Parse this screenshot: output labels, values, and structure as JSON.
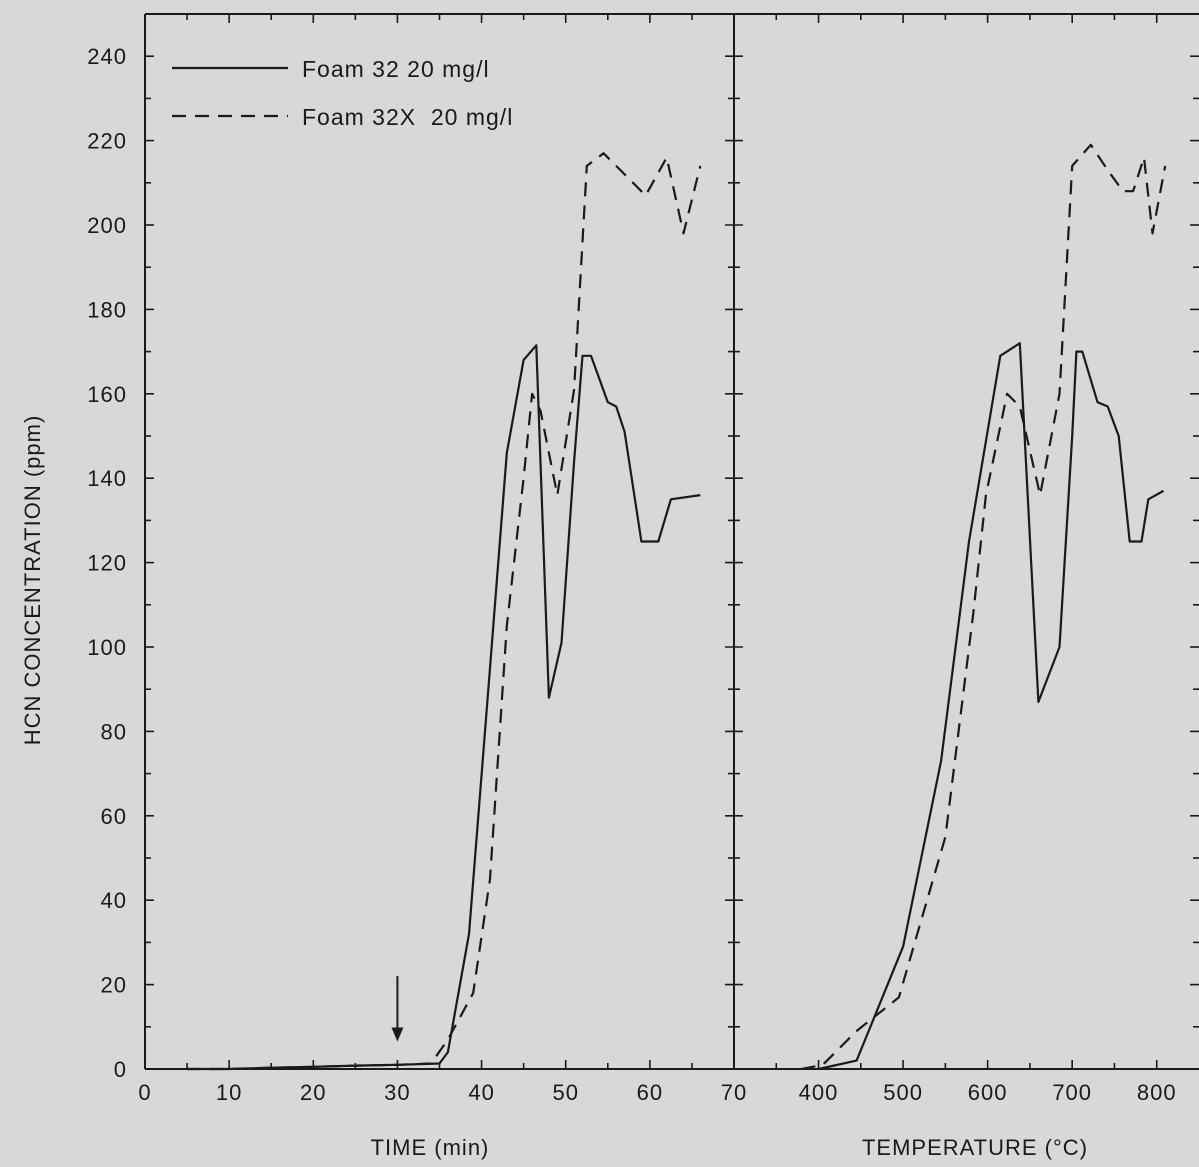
{
  "colors": {
    "background": "#d8d8d6",
    "ink": "#1a1a1a"
  },
  "y_axis": {
    "title": "HCN CONCENTRATION (ppm)",
    "ylim": [
      0,
      250
    ],
    "ticks": [
      "0",
      "20",
      "40",
      "60",
      "80",
      "100",
      "120",
      "140",
      "160",
      "180",
      "200",
      "220",
      "240"
    ]
  },
  "legend": {
    "placement": "top-left",
    "entries": [
      {
        "label": "Foam 32 20 mg/l",
        "style": "solid"
      },
      {
        "label": "Foam 32X  20 mg/l",
        "style": "dashed"
      }
    ]
  },
  "chart_data": [
    {
      "type": "line",
      "xlabel": "TIME (min)",
      "ylabel": "HCN CONCENTRATION (ppm)",
      "xlim": [
        0,
        70
      ],
      "ylim": [
        0,
        250
      ],
      "x_ticks": [
        "0",
        "10",
        "20",
        "30",
        "40",
        "50",
        "60",
        "70"
      ],
      "grid": false,
      "annotations": [
        {
          "type": "arrow-down",
          "x": 30,
          "y_from": 22,
          "y_to": 7
        }
      ],
      "series": [
        {
          "name": "Foam 32 20 mg/l",
          "style": "solid",
          "points": [
            [
              5,
              0
            ],
            [
              10,
              0
            ],
            [
              15,
              0.3
            ],
            [
              20,
              0.5
            ],
            [
              25,
              0.8
            ],
            [
              30,
              1.0
            ],
            [
              35,
              1.3
            ],
            [
              36,
              4
            ],
            [
              38.5,
              32
            ],
            [
              41,
              95
            ],
            [
              43,
              146
            ],
            [
              45,
              168
            ],
            [
              46.5,
              171.5
            ],
            [
              48,
              88
            ],
            [
              49.5,
              101
            ],
            [
              51,
              144
            ],
            [
              52,
              169
            ],
            [
              53,
              169
            ],
            [
              55,
              158
            ],
            [
              56,
              157
            ],
            [
              57,
              151
            ],
            [
              59,
              125
            ],
            [
              61,
              125
            ],
            [
              62.5,
              135
            ],
            [
              66,
              136
            ]
          ]
        },
        {
          "name": "Foam 32X  20 mg/l",
          "style": "dashed",
          "points": [
            [
              5,
              0
            ],
            [
              10,
              0
            ],
            [
              15,
              0.3
            ],
            [
              20,
              0.5
            ],
            [
              25,
              0.8
            ],
            [
              30,
              1.0
            ],
            [
              34,
              1.3
            ],
            [
              36,
              7
            ],
            [
              39,
              18
            ],
            [
              41,
              45
            ],
            [
              43,
              105
            ],
            [
              45,
              140
            ],
            [
              46,
              160
            ],
            [
              47,
              156
            ],
            [
              49,
              136
            ],
            [
              51,
              161
            ],
            [
              52.5,
              214
            ],
            [
              54.5,
              217
            ],
            [
              56,
              214
            ],
            [
              58,
              210
            ],
            [
              59.5,
              207
            ],
            [
              62,
              216
            ],
            [
              64,
              198
            ],
            [
              66,
              214
            ]
          ]
        }
      ]
    },
    {
      "type": "line",
      "xlabel": "TEMPERATURE (°C)",
      "ylabel": "",
      "xlim": [
        300,
        850
      ],
      "ylim": [
        0,
        250
      ],
      "x_ticks": [
        "400",
        "500",
        "600",
        "700",
        "800"
      ],
      "grid": false,
      "series": [
        {
          "name": "Foam 32 20 mg/l",
          "style": "solid",
          "points": [
            [
              400,
              0
            ],
            [
              445,
              2
            ],
            [
              500,
              29
            ],
            [
              545,
              73
            ],
            [
              578,
              125
            ],
            [
              615,
              169
            ],
            [
              638,
              172
            ],
            [
              660,
              87
            ],
            [
              685,
              100
            ],
            [
              700,
              150
            ],
            [
              705,
              170
            ],
            [
              712,
              170
            ],
            [
              730,
              158
            ],
            [
              742,
              157
            ],
            [
              755,
              150
            ],
            [
              768,
              125
            ],
            [
              782,
              125
            ],
            [
              790,
              135
            ],
            [
              808,
              137
            ]
          ]
        },
        {
          "name": "Foam 32X  20 mg/l",
          "style": "dashed",
          "points": [
            [
              380,
              0
            ],
            [
              405,
              1
            ],
            [
              445,
              9
            ],
            [
              495,
              17
            ],
            [
              550,
              55
            ],
            [
              583,
              108
            ],
            [
              598,
              136
            ],
            [
              623,
              160
            ],
            [
              638,
              157
            ],
            [
              662,
              136
            ],
            [
              685,
              160
            ],
            [
              700,
              214
            ],
            [
              722,
              219
            ],
            [
              742,
              213
            ],
            [
              760,
              208
            ],
            [
              772,
              208
            ],
            [
              785,
              216
            ],
            [
              795,
              198
            ],
            [
              810,
              214
            ]
          ]
        }
      ]
    }
  ]
}
